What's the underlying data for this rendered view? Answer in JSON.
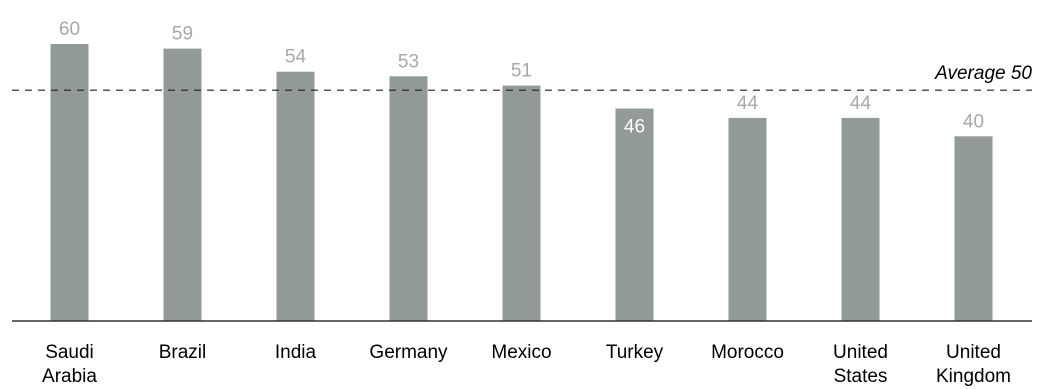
{
  "chart_data": {
    "type": "bar",
    "categories": [
      [
        "Saudi",
        "Arabia"
      ],
      [
        "Brazil"
      ],
      [
        "India"
      ],
      [
        "Germany"
      ],
      [
        "Mexico"
      ],
      [
        "Turkey"
      ],
      [
        "Morocco"
      ],
      [
        "United",
        "States"
      ],
      [
        "United",
        "Kingdom"
      ]
    ],
    "values": [
      60,
      59,
      54,
      53,
      51,
      46,
      44,
      44,
      40
    ],
    "data_labels": [
      "60",
      "59",
      "54",
      "53",
      "51",
      "46",
      "44",
      "44",
      "40"
    ],
    "label_inside_bar": [
      false,
      false,
      false,
      false,
      false,
      true,
      false,
      false,
      false
    ],
    "reference_line": {
      "value": 50,
      "label": "Average 50",
      "style": "dashed"
    },
    "ylim": [
      0,
      60
    ],
    "grid": false,
    "legend": "none",
    "colors": {
      "bar": "#929b96",
      "value_label": "#a8a8a8",
      "value_label_inside": "#ffffff",
      "text": "#000000"
    }
  }
}
